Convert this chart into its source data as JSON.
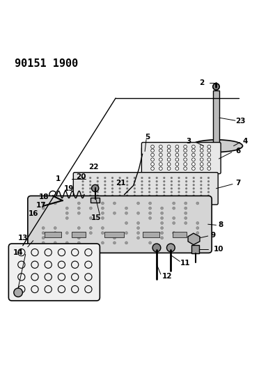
{
  "title": "90151 1900",
  "title_fontsize": 11,
  "title_fontweight": "bold",
  "bg_color": "#ffffff",
  "line_color": "#000000",
  "figsize": [
    3.95,
    5.33
  ],
  "dpi": 100
}
